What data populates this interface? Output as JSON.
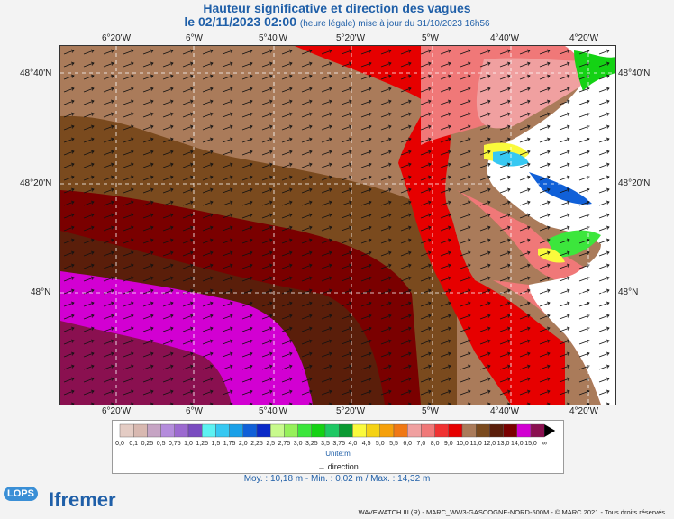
{
  "title": "Hauteur significative et direction des vagues",
  "subtitle_date": "le 02/11/2023 02:00",
  "subtitle_info": "(heure légale) mise à jour du 31/10/2023 16h56",
  "lon_ticks": [
    "6°20'W",
    "6°W",
    "5°40'W",
    "5°20'W",
    "5°W",
    "4°40'W",
    "4°20'W"
  ],
  "lat_ticks": [
    "48°40'N",
    "48°20'N",
    "48°N"
  ],
  "legend": {
    "labels": [
      "0,0",
      "0,1",
      "0,25",
      "0,5",
      "0,75",
      "1,0",
      "1,25",
      "1,5",
      "1,75",
      "2,0",
      "2,25",
      "2,5",
      "2,75",
      "3,0",
      "3,25",
      "3,5",
      "3,75",
      "4,0",
      "4,5",
      "5,0",
      "5,5",
      "6,0",
      "7,0",
      "8,0",
      "9,0",
      "10,0",
      "11,0",
      "12,0",
      "13,0",
      "14,0",
      "15,0",
      "∞"
    ],
    "colors": [
      "#e4ccc4",
      "#d8b8b0",
      "#c6a4c4",
      "#b48cdc",
      "#9c6ad0",
      "#7a4cc0",
      "#5cf2f2",
      "#36c8f2",
      "#1aa0e8",
      "#1060d8",
      "#0a2ac8",
      "#c8fa8c",
      "#96f05a",
      "#3ce63c",
      "#14d214",
      "#1ec864",
      "#0a9a32",
      "#fafa3c",
      "#f5d214",
      "#f5a00a",
      "#f07814",
      "#f0a0a0",
      "#f07878",
      "#f03232",
      "#e60000",
      "#aa7b5a",
      "#7a4a1e",
      "#5a1e0a",
      "#7a0000",
      "#d200d2",
      "#8a1050"
    ],
    "unit_label": "Unité:m",
    "direction_label": "direction",
    "arrow_glyph": "→"
  },
  "stats": "Moy. : 10,18 m   -   Min. : 0,02 m / Max. : 14,32 m",
  "copyright": "WAVEWATCH III (R) - MARC_WW3-GASCOGNE-NORD-500M - © MARC 2021 - Tous droits réservés",
  "logos": {
    "lops": "LOPS",
    "ifremer": "Ifremer"
  }
}
